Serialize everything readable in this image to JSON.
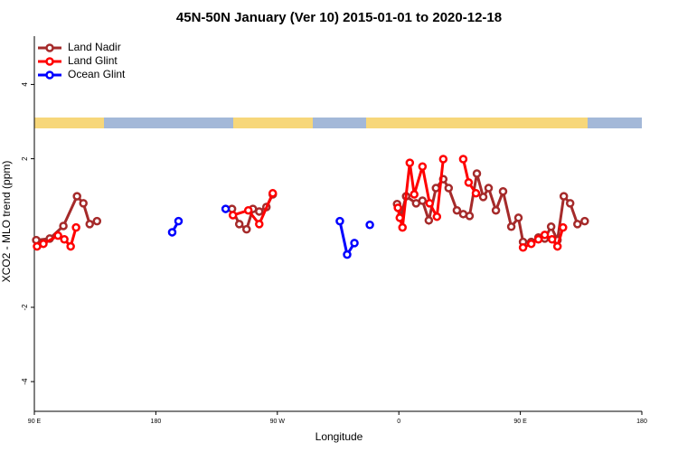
{
  "chart_data": {
    "type": "line",
    "title": "45N-50N January (Ver 10)   2015-01-01 to 2020-12-18",
    "x_label": "Longitude",
    "y_label": "XCO2 - MLO trend (ppm)",
    "xlim": [
      -270,
      180
    ],
    "xticks": [
      {
        "value": -270,
        "label": "90 E"
      },
      {
        "value": -180,
        "label": "180"
      },
      {
        "value": -90,
        "label": "90 W"
      },
      0,
      {
        "value": 90,
        "label": "90 E"
      },
      180
    ],
    "ylim": [
      -4.8,
      5.3
    ],
    "yticks": [
      -4,
      -2,
      2,
      4
    ],
    "legend": "top-left",
    "series": [
      {
        "name": "Land Nadir",
        "color": "#a52a2a",
        "x": [
          -268.6,
          -258.6,
          -248.5,
          -238.4,
          -233.7,
          -229.0,
          -223.6,
          null,
          -123.6,
          -118.2,
          -112.8,
          -108.1,
          -103.4,
          -98.1,
          -93.4,
          null,
          -1.3,
          1.3,
          5.4,
          12.8,
          17.5,
          22.2,
          27.5,
          32.9,
          36.9,
          43.0,
          47.7,
          52.4,
          57.8,
          62.5,
          66.5,
          71.9,
          77.2,
          83.3,
          88.6,
          92.0,
          98.1,
          103.4,
          108.1,
          112.8,
          117.5,
          122.2,
          126.9,
          132.3,
          137.7
        ],
        "values": [
          -0.19,
          -0.15,
          0.19,
          0.99,
          0.8,
          0.24,
          0.32,
          null,
          0.65,
          0.24,
          0.1,
          0.65,
          0.58,
          0.7,
          1.04,
          null,
          0.78,
          0.44,
          0.99,
          0.8,
          0.87,
          0.34,
          1.21,
          1.45,
          1.21,
          0.61,
          0.51,
          0.46,
          1.6,
          0.97,
          1.21,
          0.61,
          1.12,
          0.17,
          0.41,
          -0.24,
          -0.24,
          -0.12,
          -0.15,
          0.17,
          -0.19,
          0.99,
          0.8,
          0.24,
          0.32
        ]
      },
      {
        "name": "Land Glint",
        "color": "#ff0000",
        "x": [
          -268.0,
          -263.3,
          -252.5,
          -247.8,
          -243.1,
          -239.1,
          null,
          -122.9,
          -111.5,
          -103.4,
          -93.4,
          null,
          -0.7,
          0.7,
          2.7,
          8.1,
          11.4,
          17.5,
          22.8,
          28.2,
          32.9,
          null,
          47.7,
          51.7,
          57.1,
          null,
          92.0,
          98.1,
          103.4,
          108.1,
          113.5,
          117.5,
          121.6
        ],
        "values": [
          -0.36,
          -0.29,
          -0.07,
          -0.17,
          -0.36,
          0.15,
          null,
          0.48,
          0.61,
          0.24,
          1.07,
          null,
          0.68,
          0.41,
          0.15,
          1.89,
          1.04,
          1.79,
          0.8,
          0.44,
          1.99,
          null,
          1.99,
          1.36,
          1.07,
          null,
          -0.39,
          -0.29,
          -0.17,
          -0.05,
          -0.17,
          -0.36,
          0.15
        ]
      },
      {
        "name": "Ocean Glint",
        "color": "#0000ff",
        "x": [
          -167.9,
          -163.2,
          null,
          -128.3,
          null,
          -43.7,
          -38.3,
          -32.9,
          null,
          -21.5
        ],
        "values": [
          0.02,
          0.32,
          null,
          0.65,
          null,
          0.32,
          -0.58,
          -0.27,
          null,
          0.22
        ]
      }
    ]
  }
}
